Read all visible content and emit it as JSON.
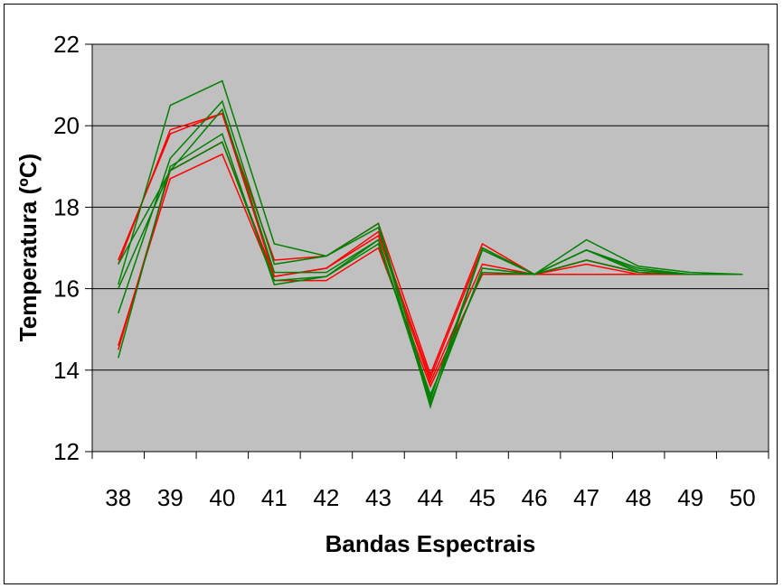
{
  "chart_data": {
    "type": "line",
    "xlabel": "Bandas Espectrais",
    "ylabel": "Temperatura (ºC)",
    "categories": [
      "38",
      "39",
      "40",
      "41",
      "42",
      "43",
      "44",
      "45",
      "46",
      "47",
      "48",
      "49",
      "50"
    ],
    "ylim": [
      12,
      22
    ],
    "yticks": [
      "12",
      "14",
      "16",
      "18",
      "20",
      "22"
    ],
    "grid": true,
    "plot_background": "#c0c0c0",
    "series": [
      {
        "color": "#ff0000",
        "values": [
          16.7,
          19.8,
          20.3,
          16.7,
          16.8,
          17.6,
          13.9,
          17.1,
          16.35,
          16.7,
          16.4,
          16.35,
          16.35
        ]
      },
      {
        "color": "#ff0000",
        "values": [
          16.6,
          19.9,
          20.3,
          16.3,
          16.5,
          17.4,
          13.8,
          17.0,
          16.35,
          16.7,
          16.4,
          16.35,
          16.35
        ]
      },
      {
        "color": "#ff0000",
        "values": [
          14.5,
          18.9,
          19.6,
          16.3,
          16.5,
          17.3,
          13.7,
          16.6,
          16.35,
          16.6,
          16.35,
          16.35,
          16.35
        ]
      },
      {
        "color": "#ff0000",
        "values": [
          14.6,
          18.7,
          19.3,
          16.2,
          16.2,
          17.0,
          13.6,
          16.35,
          16.35,
          16.35,
          16.35,
          16.35,
          16.35
        ]
      },
      {
        "color": "#008000",
        "values": [
          16.1,
          20.5,
          21.1,
          17.1,
          16.8,
          17.6,
          13.3,
          17.0,
          16.35,
          17.2,
          16.55,
          16.4,
          16.35
        ]
      },
      {
        "color": "#008000",
        "values": [
          15.4,
          19.2,
          20.6,
          16.6,
          16.8,
          17.5,
          13.1,
          17.0,
          16.35,
          16.95,
          16.5,
          16.35,
          16.35
        ]
      },
      {
        "color": "#008000",
        "values": [
          16.0,
          18.9,
          20.4,
          16.4,
          16.4,
          17.2,
          13.2,
          16.5,
          16.35,
          16.95,
          16.4,
          16.35,
          16.35
        ]
      },
      {
        "color": "#008000",
        "values": [
          14.3,
          19.0,
          19.8,
          16.1,
          16.3,
          17.1,
          13.4,
          16.4,
          16.35,
          16.7,
          16.4,
          16.35,
          16.35
        ]
      },
      {
        "color": "#008000",
        "values": [
          16.6,
          18.9,
          19.6,
          16.2,
          16.3,
          17.2,
          13.3,
          16.95,
          16.35,
          16.95,
          16.45,
          16.35,
          16.35
        ]
      }
    ]
  }
}
